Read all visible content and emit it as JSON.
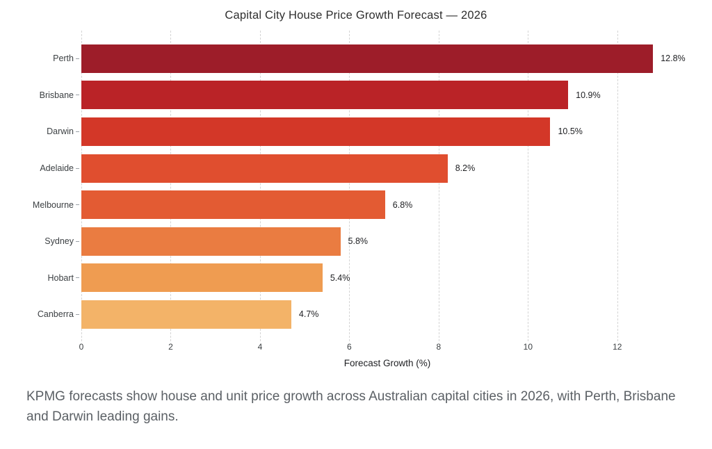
{
  "page": {
    "background": "#ffffff"
  },
  "chart_data": {
    "type": "bar",
    "orientation": "horizontal",
    "title": "Capital City House Price Growth Forecast — 2026",
    "categories": [
      "Perth",
      "Brisbane",
      "Darwin",
      "Adelaide",
      "Melbourne",
      "Sydney",
      "Hobart",
      "Canberra"
    ],
    "values": [
      12.8,
      10.9,
      10.5,
      8.2,
      6.8,
      5.8,
      5.4,
      4.7
    ],
    "value_labels": [
      "12.8%",
      "10.9%",
      "10.5%",
      "8.2%",
      "6.8%",
      "5.8%",
      "5.4%",
      "4.7%"
    ],
    "bar_colors": [
      "#9d1d29",
      "#ba2327",
      "#d33728",
      "#e04e2f",
      "#e35b33",
      "#ea7c41",
      "#ef9c51",
      "#f3b368"
    ],
    "xlabel": "Forecast Growth (%)",
    "x_ticks": [
      "0",
      "2",
      "4",
      "6",
      "8",
      "10",
      "12"
    ],
    "x_tick_values": [
      0,
      2,
      4,
      6,
      8,
      10,
      12
    ],
    "xlim": [
      0,
      13.7
    ],
    "grid": {
      "axis": "x",
      "style": "dashed",
      "color": "#d4d4d4"
    },
    "legend": null
  },
  "caption": "KPMG forecasts show house and unit price growth across Australian capital cities in 2026, with Perth, Brisbane and Darwin leading gains."
}
